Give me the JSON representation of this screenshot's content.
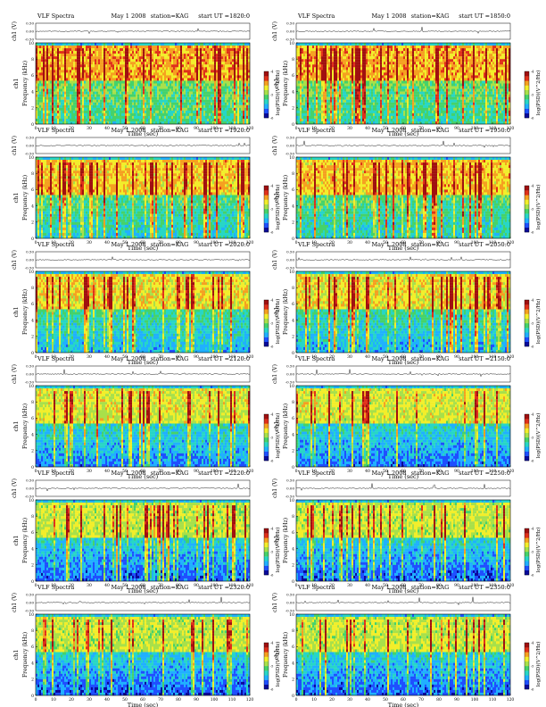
{
  "figure": {
    "title": "VLF Spectra",
    "date": "May 1 2008",
    "station": "station=KAG",
    "start_prefix": "start  UT  ="
  },
  "chart_data": {
    "type": "heatmap",
    "title": "VLF Spectra",
    "date": "May 1 2008",
    "station": "KAG",
    "xlabel": "Time  (sec)",
    "ylabel": "Frequency  (kHz)",
    "channel_label": "ch1",
    "waveform_ylabel": "ch1 (V)",
    "waveform_ticks": [
      "0.50",
      "0.00",
      "-0.50"
    ],
    "waveform_ylim": [
      -0.5,
      0.5
    ],
    "xlim": [
      0,
      120
    ],
    "x_ticks": [
      0,
      10,
      20,
      30,
      40,
      50,
      60,
      70,
      80,
      90,
      100,
      110,
      120
    ],
    "ylim": [
      0,
      10
    ],
    "y_ticks": [
      0,
      2,
      4,
      6,
      8,
      10
    ],
    "colorbar_label": "log(PSD)(V^2/Hz)",
    "colorbar_ticks": [
      "-6",
      "-5",
      "-4"
    ],
    "colorbar_range": [
      -6,
      -4
    ],
    "colormap": [
      "#0a0a9a",
      "#1f4fff",
      "#20b0ff",
      "#27d6c6",
      "#45d26a",
      "#a8e04a",
      "#f2ee2a",
      "#f5a020",
      "#e0301a",
      "#a01010"
    ],
    "panels": [
      {
        "start_ut": "1820:0",
        "intensity": 0.82,
        "seed": 11
      },
      {
        "start_ut": "1850:0",
        "intensity": 0.8,
        "seed": 23
      },
      {
        "start_ut": "1920:0",
        "intensity": 0.7,
        "seed": 37
      },
      {
        "start_ut": "1950:0",
        "intensity": 0.72,
        "seed": 41
      },
      {
        "start_ut": "2020:0",
        "intensity": 0.6,
        "seed": 53
      },
      {
        "start_ut": "2050:0",
        "intensity": 0.58,
        "seed": 67
      },
      {
        "start_ut": "2120:0",
        "intensity": 0.48,
        "seed": 71
      },
      {
        "start_ut": "2150:0",
        "intensity": 0.45,
        "seed": 83
      },
      {
        "start_ut": "2220:0",
        "intensity": 0.4,
        "seed": 97
      },
      {
        "start_ut": "2250:0",
        "intensity": 0.4,
        "seed": 101
      },
      {
        "start_ut": "2320:0",
        "intensity": 0.38,
        "seed": 113
      },
      {
        "start_ut": "2350:0",
        "intensity": 0.4,
        "seed": 127
      }
    ]
  }
}
